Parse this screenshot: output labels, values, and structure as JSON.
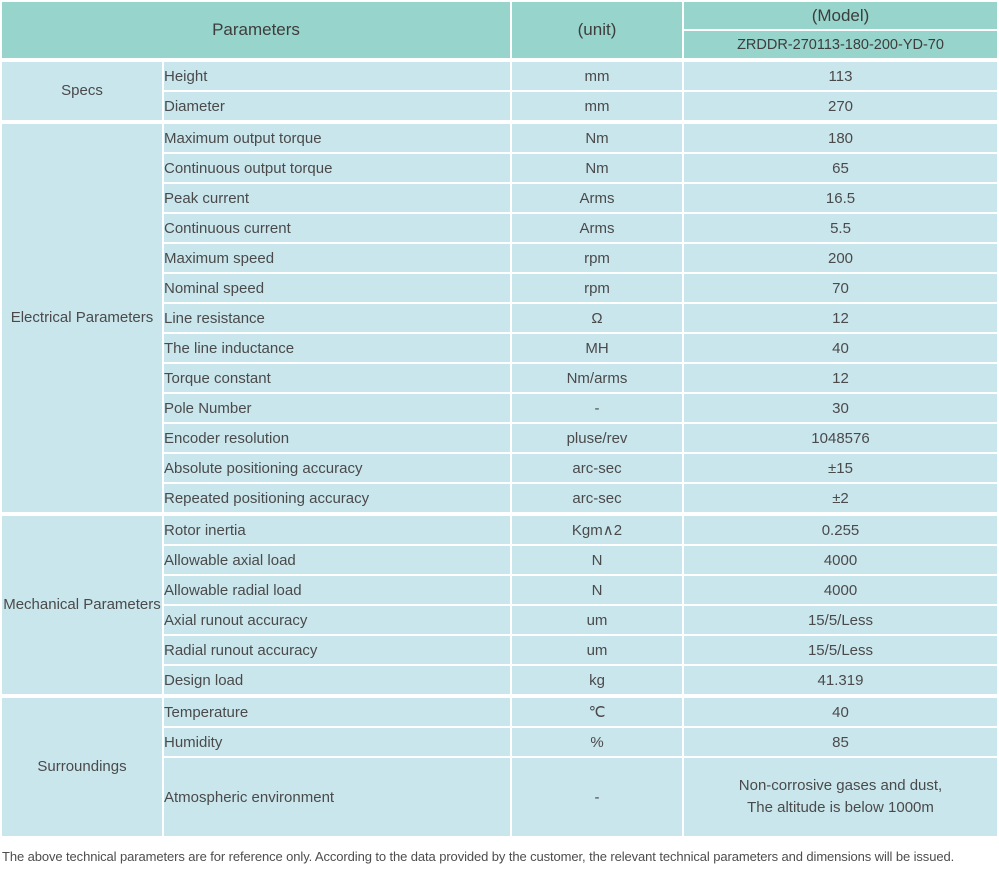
{
  "header": {
    "parameters_label": "Parameters",
    "unit_label": "(unit)",
    "model_label": "(Model)",
    "model_value": "ZRDDR-270113-180-200-YD-70"
  },
  "colors": {
    "header_bg": "#97d4cb",
    "cell_bg": "#cae6ed",
    "border": "#ffffff",
    "text": "#4a4a4a"
  },
  "sections": [
    {
      "label": "Specs",
      "rows": [
        {
          "name": "Height",
          "unit": "mm",
          "value": "113"
        },
        {
          "name": "Diameter",
          "unit": "mm",
          "value": "270"
        }
      ]
    },
    {
      "label": "Electrical Parameters",
      "rows": [
        {
          "name": "Maximum output torque",
          "unit": "Nm",
          "value": "180"
        },
        {
          "name": "Continuous output torque",
          "unit": "Nm",
          "value": "65"
        },
        {
          "name": "Peak current",
          "unit": "Arms",
          "value": "16.5"
        },
        {
          "name": "Continuous current",
          "unit": "Arms",
          "value": "5.5"
        },
        {
          "name": "Maximum speed",
          "unit": "rpm",
          "value": "200"
        },
        {
          "name": "Nominal speed",
          "unit": "rpm",
          "value": "70"
        },
        {
          "name": "Line resistance",
          "unit": "Ω",
          "value": "12"
        },
        {
          "name": "The line inductance",
          "unit": "MH",
          "value": "40"
        },
        {
          "name": "Torque constant",
          "unit": "Nm/arms",
          "value": "12"
        },
        {
          "name": "Pole Number",
          "unit": "-",
          "value": "30"
        },
        {
          "name": "Encoder resolution",
          "unit": "pluse/rev",
          "value": "1048576"
        },
        {
          "name": "Absolute positioning accuracy",
          "unit": "arc-sec",
          "value": "±15"
        },
        {
          "name": "Repeated positioning accuracy",
          "unit": "arc-sec",
          "value": "±2"
        }
      ]
    },
    {
      "label": "Mechanical Parameters",
      "rows": [
        {
          "name": "Rotor inertia",
          "unit": "Kgm∧2",
          "value": "0.255"
        },
        {
          "name": "Allowable axial load",
          "unit": "N",
          "value": "4000"
        },
        {
          "name": "Allowable radial load",
          "unit": "N",
          "value": "4000"
        },
        {
          "name": "Axial runout accuracy",
          "unit": "um",
          "value": "15/5/Less"
        },
        {
          "name": "Radial runout accuracy",
          "unit": "um",
          "value": "15/5/Less"
        },
        {
          "name": "Design load",
          "unit": "kg",
          "value": "41.319"
        }
      ]
    },
    {
      "label": "Surroundings",
      "rows": [
        {
          "name": "Temperature",
          "unit": "℃",
          "value": "40"
        },
        {
          "name": "Humidity",
          "unit": "%",
          "value": "85"
        },
        {
          "name": "Atmospheric environment",
          "unit": "-",
          "value": "Non-corrosive gases and dust,\nThe altitude is below 1000m",
          "tall": true
        }
      ]
    }
  ],
  "footnote": "The above technical parameters are for reference only. According to the data provided by the customer, the relevant technical parameters and dimensions will be issued."
}
